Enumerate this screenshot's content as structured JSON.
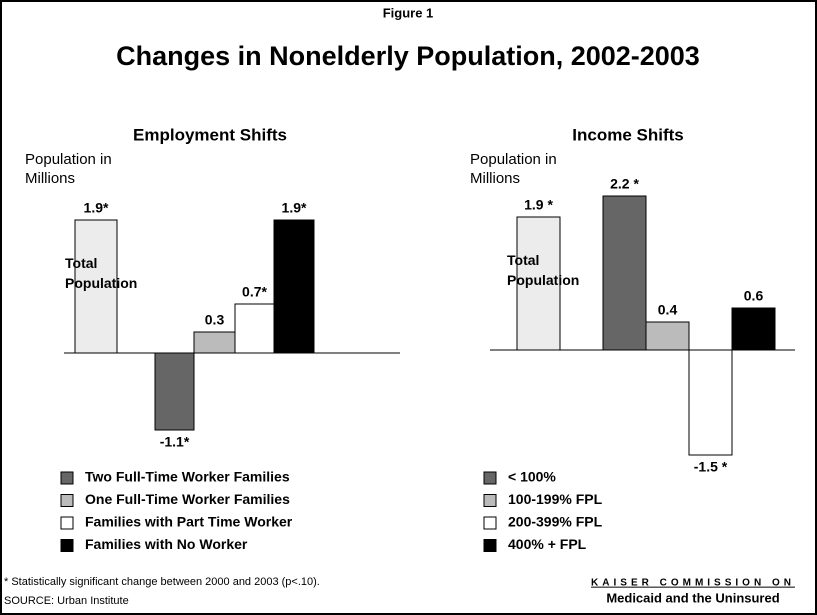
{
  "header": {
    "figure": "Figure 1",
    "title": "Changes in Nonelderly Population, 2002-2003"
  },
  "chart_data": [
    {
      "type": "bar",
      "title": "Employment Shifts",
      "ylabel": "Population in Millions",
      "series": [
        {
          "name": "Total Population",
          "color": "#ececec",
          "values": [
            1.9
          ],
          "value_labels": [
            "1.9*"
          ]
        },
        {
          "name": "Two Full-Time Worker Families",
          "color": "#666666",
          "values": [
            -1.1
          ],
          "value_labels": [
            "-1.1*"
          ]
        },
        {
          "name": "One Full-Time Worker Families",
          "color": "#bbbbbb",
          "values": [
            0.3
          ],
          "value_labels": [
            "0.3"
          ]
        },
        {
          "name": "Families with Part Time Worker",
          "color": "#ffffff",
          "values": [
            0.7
          ],
          "value_labels": [
            "0.7*"
          ]
        },
        {
          "name": "Families with No Worker",
          "color": "#000000",
          "values": [
            1.9
          ],
          "value_labels": [
            "1.9*"
          ]
        }
      ]
    },
    {
      "type": "bar",
      "title": "Income Shifts",
      "ylabel": "Population in Millions",
      "series": [
        {
          "name": "Total Population",
          "color": "#ececec",
          "values": [
            1.9
          ],
          "value_labels": [
            "1.9 *"
          ]
        },
        {
          "name": "< 100%",
          "color": "#666666",
          "values": [
            2.2
          ],
          "value_labels": [
            "2.2 *"
          ]
        },
        {
          "name": "100-199% FPL",
          "color": "#bbbbbb",
          "values": [
            0.4
          ],
          "value_labels": [
            "0.4"
          ]
        },
        {
          "name": "200-399% FPL",
          "color": "#ffffff",
          "values": [
            -1.5
          ],
          "value_labels": [
            "-1.5 *"
          ]
        },
        {
          "name": "400% + FPL",
          "color": "#000000",
          "values": [
            0.6
          ],
          "value_labels": [
            "0.6"
          ]
        }
      ]
    }
  ],
  "footer": {
    "note": "* Statistically significant change between 2000 and 2003 (p<.10).",
    "source": "SOURCE:  Urban Institute",
    "logo_top": "KAISER COMMISSION ON",
    "logo_bottom": "Medicaid and the Uninsured"
  }
}
